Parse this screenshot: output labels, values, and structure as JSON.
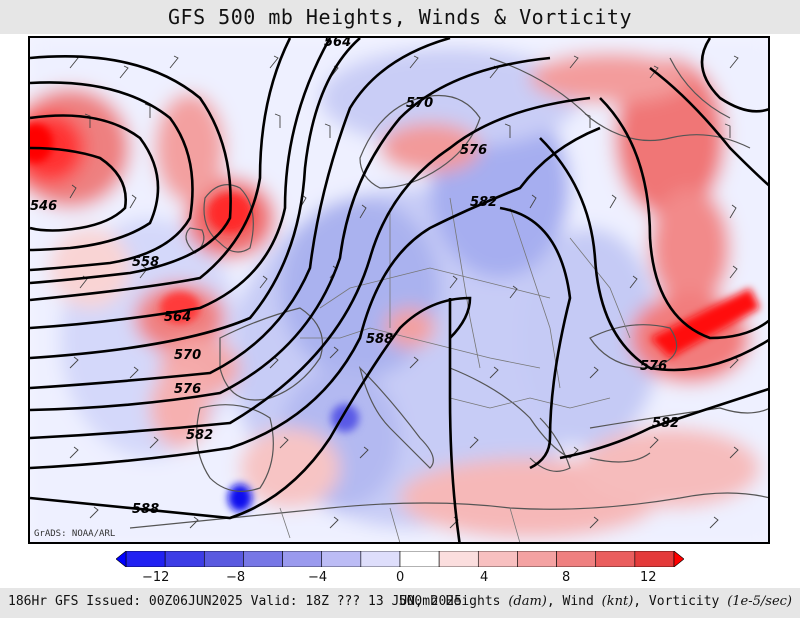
{
  "title": "GFS 500 mb Heights, Winds & Vorticity",
  "credit": "GrADS: NOAA/ARL",
  "contour_labels": [
    "564",
    "570",
    "576",
    "582",
    "546",
    "558",
    "564",
    "570",
    "576",
    "582",
    "588",
    "588",
    "576",
    "582"
  ],
  "colorbar": {
    "colors": [
      "#0000ff",
      "#2121f2",
      "#3d3de6",
      "#5a5ae0",
      "#7777e6",
      "#9a9aee",
      "#bcbcf5",
      "#dedefb",
      "#ffffff",
      "#fbdede",
      "#f8c0c0",
      "#f4a2a2",
      "#ef8080",
      "#ea5e5e",
      "#e43a3a",
      "#ff0000"
    ],
    "tick_labels": [
      "−12",
      "−8",
      "−4",
      "0",
      "4",
      "8",
      "12"
    ]
  },
  "footer": {
    "run": "186Hr GFS Issued: 00Z06JUN2025 Valid: 18Z ??? 13 JUN, 2025",
    "legend_prefix": "500mb Heights ",
    "unit_heights": "(dam)",
    "legend_mid1": ", Wind ",
    "unit_wind": "(knt)",
    "legend_mid2": ", Vorticity ",
    "unit_vort": "(1e-5/sec)"
  }
}
